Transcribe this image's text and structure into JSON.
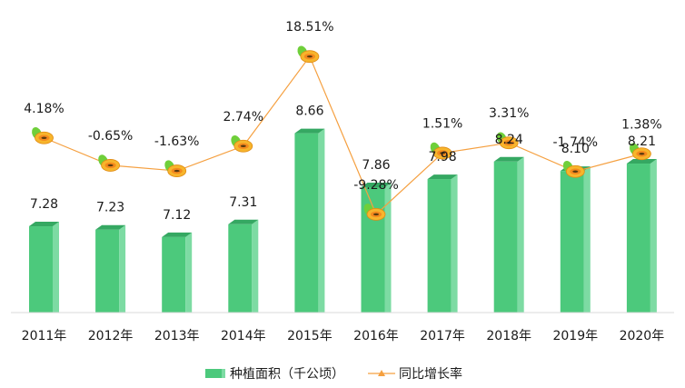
{
  "chart_data": {
    "type": "bar",
    "categories": [
      "2011年",
      "2012年",
      "2013年",
      "2014年",
      "2015年",
      "2016年",
      "2017年",
      "2018年",
      "2019年",
      "2020年"
    ],
    "series": [
      {
        "name": "种植面积（千公顷）",
        "type": "bar",
        "axis": "left",
        "values": [
          7.28,
          7.23,
          7.12,
          7.31,
          8.66,
          7.86,
          7.98,
          8.24,
          8.1,
          8.21
        ],
        "labels": [
          "7.28",
          "7.23",
          "7.12",
          "7.31",
          "8.66",
          "7.86",
          "7.98",
          "8.24",
          "8.10",
          "8.21"
        ],
        "color": "#4cc97c"
      },
      {
        "name": "同比增长率",
        "type": "line",
        "axis": "right",
        "values": [
          4.18,
          -0.65,
          -1.63,
          2.74,
          18.51,
          -9.28,
          1.51,
          3.31,
          -1.74,
          1.38
        ],
        "labels": [
          "4.18%",
          "-0.65%",
          "-1.63%",
          "2.74%",
          "18.51%",
          "-9.28%",
          "1.51%",
          "3.31%",
          "-1.74%",
          "1.38%"
        ],
        "color": "#f5a040",
        "marker": "papaya-icon"
      }
    ],
    "left_ylim": [
      6.0,
      9.0
    ],
    "right_ylim": [
      -14.0,
      20.0
    ],
    "legend_position": "bottom",
    "grid": false
  }
}
